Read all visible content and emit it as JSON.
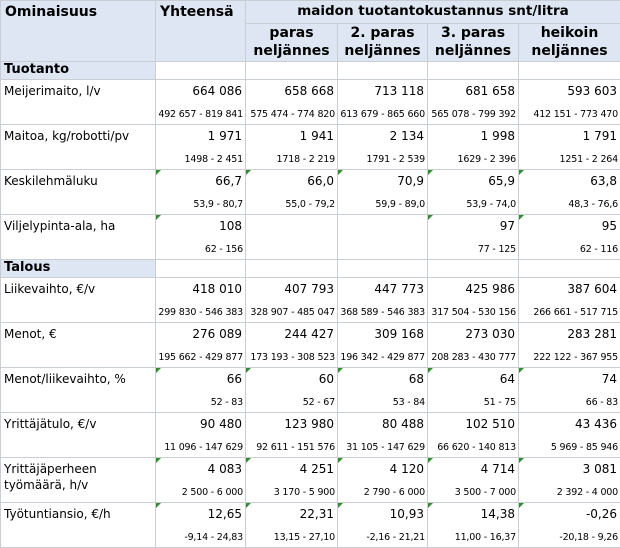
{
  "header": {
    "col_property": "Ominaisuus",
    "col_total": "Yhteensä",
    "group_title": "maidon tuotantokustannus snt/litra",
    "quartiles": [
      "paras\nneljännes",
      "2. paras\nneljännes",
      "3. paras\nneljännes",
      "heikoin\nneljännes"
    ]
  },
  "sections": [
    {
      "title": "Tuotanto",
      "rows": [
        {
          "label": "Meijerimaito, l/v",
          "flag": false,
          "cells": [
            {
              "main": "664 086",
              "range": "492 657 - 819 841",
              "flag": false
            },
            {
              "main": "658 668",
              "range": "575 474 - 774 820",
              "flag": false
            },
            {
              "main": "713 118",
              "range": "613 679 - 865 660",
              "flag": false
            },
            {
              "main": "681 658",
              "range": "565 078 - 799 392",
              "flag": false
            },
            {
              "main": "593 603",
              "range": "412 151 - 773 470",
              "flag": false
            }
          ]
        },
        {
          "label": "Maitoa, kg/robotti/pv",
          "flag": false,
          "cells": [
            {
              "main": "1 971",
              "range": "1498 - 2 451",
              "flag": false
            },
            {
              "main": "1 941",
              "range": "1718 - 2 219",
              "flag": false
            },
            {
              "main": "2 134",
              "range": "1791 - 2 539",
              "flag": false
            },
            {
              "main": "1 998",
              "range": "1629 - 2 396",
              "flag": false
            },
            {
              "main": "1 791",
              "range": "1251 - 2 264",
              "flag": false
            }
          ]
        },
        {
          "label": "Keskilehmäluku",
          "flag": false,
          "cells": [
            {
              "main": "66,7",
              "range": "53,9 - 80,7",
              "flag": true
            },
            {
              "main": "66,0",
              "range": "55,0 - 79,2",
              "flag": true
            },
            {
              "main": "70,9",
              "range": "59,9 - 89,0",
              "flag": true
            },
            {
              "main": "65,9",
              "range": "53,9 - 74,0",
              "flag": true
            },
            {
              "main": "63,8",
              "range": "48,3 - 76,6",
              "flag": true
            }
          ]
        },
        {
          "label": "Viljelypinta-ala, ha",
          "flag": false,
          "cells": [
            {
              "main": "108",
              "range": "62 - 156",
              "flag": true
            },
            {
              "main": "",
              "range": "",
              "flag": false
            },
            {
              "main": "",
              "range": "",
              "flag": false
            },
            {
              "main": "97",
              "range": "77 - 125",
              "flag": true
            },
            {
              "main": "95",
              "range": "62 - 116",
              "flag": true
            }
          ]
        }
      ]
    },
    {
      "title": "Talous",
      "rows": [
        {
          "label": "Liikevaihto, €/v",
          "flag": false,
          "cells": [
            {
              "main": "418 010",
              "range": "299 830 - 546 383",
              "flag": false
            },
            {
              "main": "407 793",
              "range": "328 907 - 485 047",
              "flag": false
            },
            {
              "main": "447 773",
              "range": "368 589 - 546 383",
              "flag": false
            },
            {
              "main": "425 986",
              "range": "317 504 - 530 156",
              "flag": false
            },
            {
              "main": "387 604",
              "range": "266 661 - 517 715",
              "flag": false
            }
          ]
        },
        {
          "label": "Menot, €",
          "flag": false,
          "cells": [
            {
              "main": "276 089",
              "range": "195 662 - 429 877",
              "flag": false
            },
            {
              "main": "244 427",
              "range": "173 193 - 308 523",
              "flag": false
            },
            {
              "main": "309 168",
              "range": "196 342 - 429 877",
              "flag": false
            },
            {
              "main": "273 030",
              "range": "208 283 - 430 777",
              "flag": false
            },
            {
              "main": "283 281",
              "range": "222 122 - 367 955",
              "flag": false
            }
          ]
        },
        {
          "label": "Menot/liikevaihto, %",
          "flag": false,
          "cells": [
            {
              "main": "66",
              "range": "52 - 83",
              "flag": true
            },
            {
              "main": "60",
              "range": "52 - 67",
              "flag": true
            },
            {
              "main": "68",
              "range": "53 - 84",
              "flag": true
            },
            {
              "main": "64",
              "range": "51 - 75",
              "flag": true
            },
            {
              "main": "74",
              "range": "66 - 83",
              "flag": true
            }
          ]
        },
        {
          "label": "Yrittäjätulo, €/v",
          "flag": false,
          "cells": [
            {
              "main": "90 480",
              "range": "11 096 - 147 629",
              "flag": false
            },
            {
              "main": "123 980",
              "range": "92 611 - 151 576",
              "flag": false
            },
            {
              "main": "80 488",
              "range": "31 105 - 147 629",
              "flag": false
            },
            {
              "main": "102 510",
              "range": "66 620 - 140 813",
              "flag": false
            },
            {
              "main": "43 436",
              "range": "5 969 - 85 946",
              "flag": false
            }
          ]
        },
        {
          "label": "Yrittäjäperheen työmäärä, h/v",
          "flag": false,
          "cells": [
            {
              "main": "4 083",
              "range": "2 500 - 6 000",
              "flag": true
            },
            {
              "main": "4 251",
              "range": "3 170 - 5 900",
              "flag": true
            },
            {
              "main": "4 120",
              "range": "2 790 - 6 000",
              "flag": true
            },
            {
              "main": "4 714",
              "range": "3 500 - 7 000",
              "flag": true
            },
            {
              "main": "3 081",
              "range": "2 392 - 4 000",
              "flag": true
            }
          ]
        },
        {
          "label": "Työtuntiansio, €/h",
          "flag": false,
          "cells": [
            {
              "main": "12,65",
              "range": "-9,14 - 24,83",
              "flag": true
            },
            {
              "main": "22,31",
              "range": "13,15 - 27,10",
              "flag": true
            },
            {
              "main": "10,93",
              "range": "-2,16 - 21,21",
              "flag": true
            },
            {
              "main": "14,38",
              "range": "11,00 - 16,37",
              "flag": true
            },
            {
              "main": "-0,26",
              "range": "-20,18 - 9,26",
              "flag": true
            }
          ]
        }
      ]
    }
  ]
}
